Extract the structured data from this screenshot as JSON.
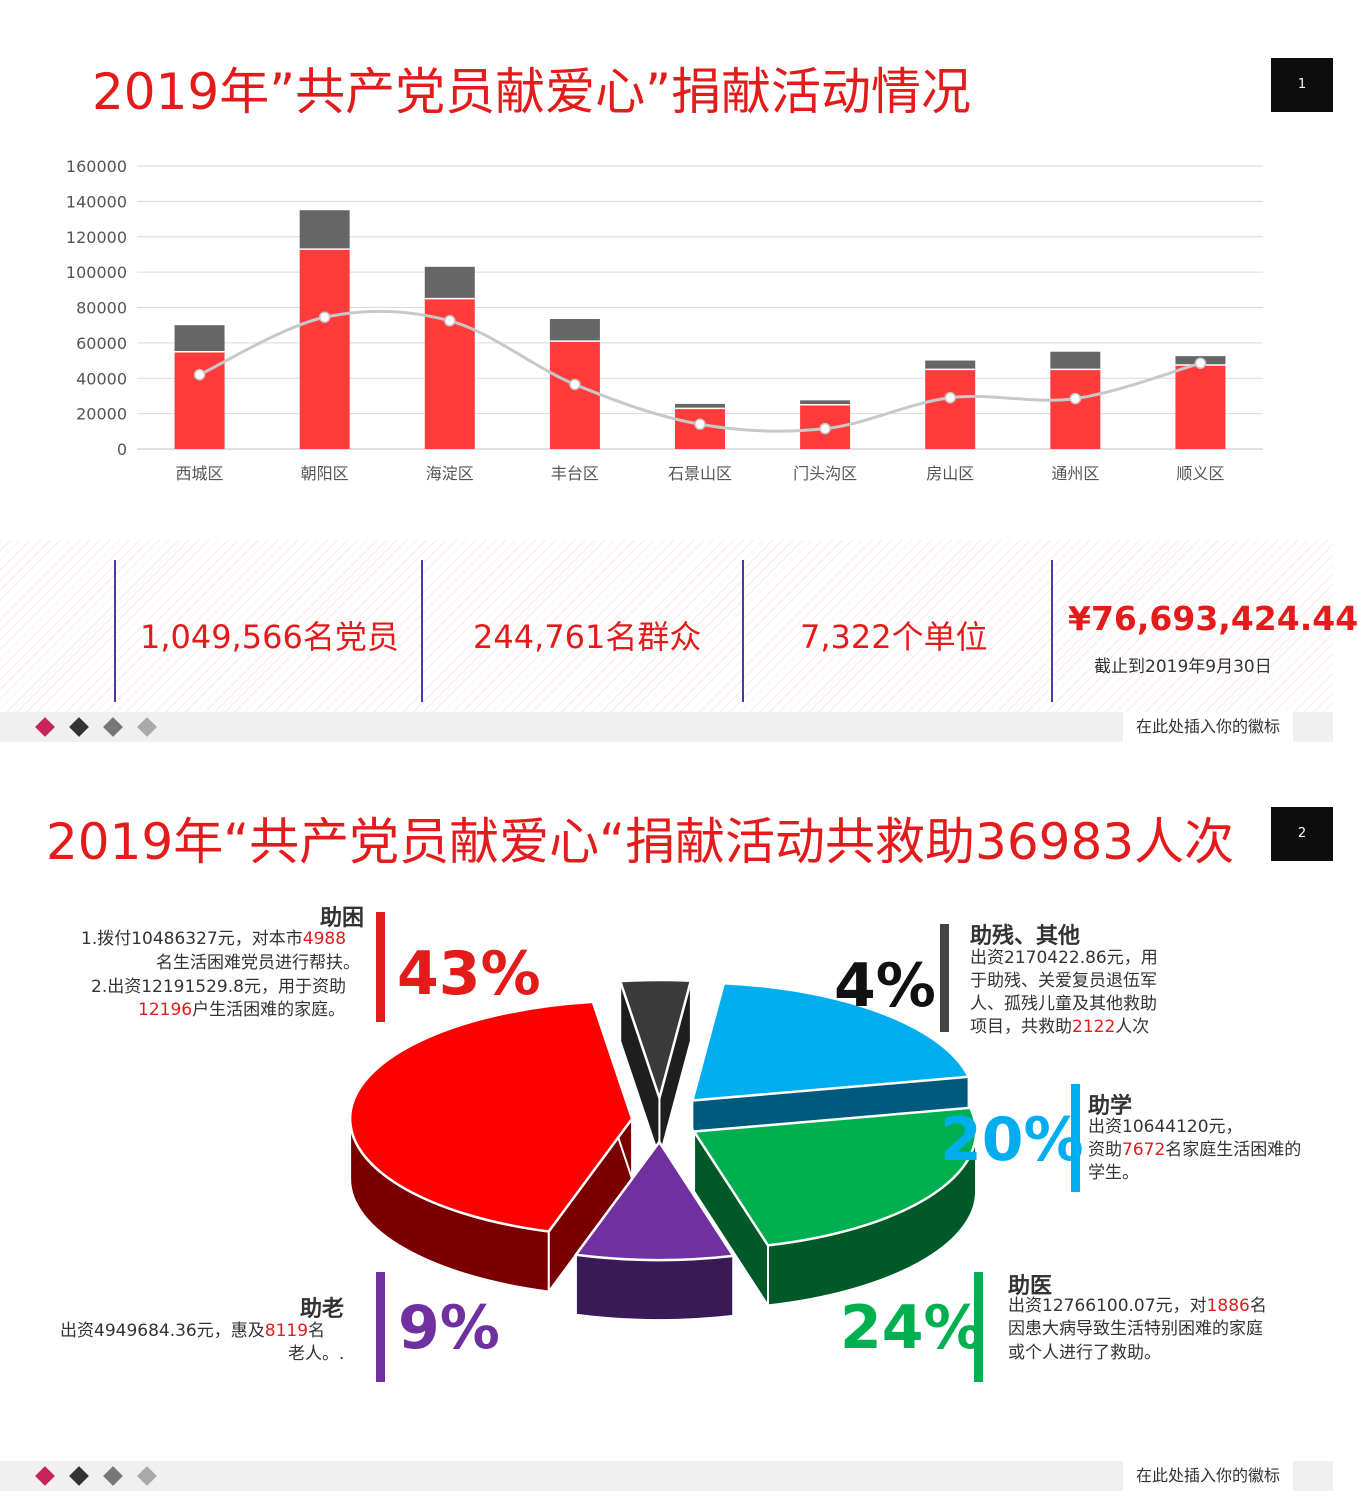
{
  "slide1": {
    "title": "2019年”共产党员献爱心”捐献活动情况",
    "page_number": "1",
    "chart_data": {
      "type": "bar",
      "stacked": true,
      "categories": [
        "西城区",
        "朝阳区",
        "海淀区",
        "丰台区",
        "石景山区",
        "门头沟区",
        "房山区",
        "通州区",
        "顺义区"
      ],
      "series": [
        {
          "type": "bar",
          "color": "#ff3b3b",
          "values": [
            55000,
            113000,
            85000,
            61000,
            23000,
            25000,
            45000,
            45000,
            47500
          ]
        },
        {
          "type": "bar",
          "color": "#666666",
          "values": [
            15000,
            22000,
            18000,
            12500,
            2500,
            2500,
            5000,
            10000,
            5000
          ]
        },
        {
          "type": "line",
          "color": "#c8c8c8",
          "values": [
            42000,
            74500,
            72500,
            36500,
            14000,
            11500,
            29000,
            28500,
            48500
          ]
        }
      ],
      "ylim": [
        0,
        160000
      ],
      "yticks": [
        "160000",
        "140000",
        "120000",
        "100000",
        "80000",
        "60000",
        "40000",
        "20000",
        "0"
      ],
      "grid": true
    },
    "stats": {
      "members": "1,049,566名党员",
      "public": "244,761名群众",
      "units": "7,322个单位",
      "amount": "¥76,693,424.44",
      "as_of": "截止到2019年9月30日"
    },
    "footer_logo": "在此处插入你的徽标"
  },
  "slide2": {
    "title": "2019年“共产党员献爱心“捐献活动共救助36983人次",
    "page_number": "2",
    "chart_data": {
      "type": "pie",
      "style": "3d-exploded",
      "categories": [
        "助困",
        "助残、其他",
        "助学",
        "助医",
        "助老"
      ],
      "values": [
        43,
        4,
        20,
        24,
        9
      ],
      "colors": [
        "#ff0000",
        "#3a3a3a",
        "#00aeef",
        "#00b050",
        "#7030a0"
      ]
    },
    "labels": {
      "zhukun": {
        "title": "助困",
        "pct": "43%",
        "l1a": "1.拨付10486327元，对本市",
        "l1b": "4988",
        "l2": "名生活困难党员进行帮扶。",
        "l3": "2.出资12191529.8元，用于资助",
        "l4a": "12196",
        "l4b": "户生活困难的家庭。"
      },
      "zhucan": {
        "title": "助残、其他",
        "pct": "4%",
        "l1": "出资2170422.86元，用",
        "l2": "于助残、关爱复员退伍军",
        "l3": "人、孤残儿童及其他救助",
        "l4a": "项目，共救助",
        "l4b": "2122",
        "l4c": "人次"
      },
      "zhuxue": {
        "title": "助学",
        "pct": "20%",
        "l1": "出资10644120元，",
        "l2a": "资助",
        "l2b": "7672",
        "l2c": "名家庭生活困难的",
        "l3": "学生。"
      },
      "zhuyi": {
        "title": "助医",
        "pct": "24%",
        "l1a": "出资12766100.07元，对",
        "l1b": "1886",
        "l1c": "名",
        "l2": "因患大病导致生活特别困难的家庭",
        "l3": "或个人进行了救助。"
      },
      "zhulao": {
        "title": "助老",
        "pct": "9%",
        "l1a": "出资4949684.36元，惠及",
        "l1b": "8119",
        "l1c": "名",
        "l2": "老人。."
      }
    },
    "footer_logo": "在此处插入你的徽标"
  }
}
